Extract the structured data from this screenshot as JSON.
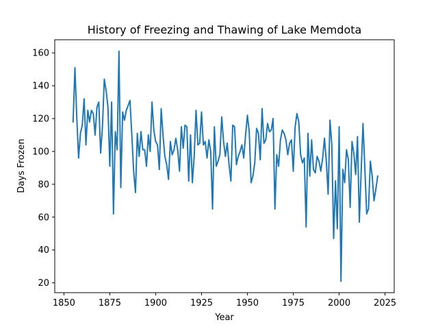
{
  "chart_data": {
    "type": "line",
    "title": "History of Freezing and Thawing of Lake Memdota",
    "xlabel": "Year",
    "ylabel": "Days Frozen",
    "xlim": [
      1845,
      2030
    ],
    "ylim": [
      14,
      168
    ],
    "xticks": [
      1850,
      1875,
      1900,
      1925,
      1950,
      1975,
      2000,
      2025
    ],
    "yticks": [
      20,
      40,
      60,
      80,
      100,
      120,
      140,
      160
    ],
    "grid": false,
    "color": "#1f77b4",
    "series": [
      {
        "x": [
          1855,
          1856,
          1857,
          1858,
          1859,
          1860,
          1861,
          1862,
          1863,
          1864,
          1865,
          1866,
          1867,
          1868,
          1869,
          1870,
          1871,
          1872,
          1873,
          1874,
          1875,
          1876,
          1877,
          1878,
          1879,
          1880,
          1881,
          1882,
          1883,
          1884,
          1885,
          1886,
          1887,
          1888,
          1889,
          1890,
          1891,
          1892,
          1893,
          1894,
          1895,
          1896,
          1897,
          1898,
          1899,
          1900,
          1901,
          1902,
          1903,
          1904,
          1905,
          1906,
          1907,
          1908,
          1909,
          1910,
          1911,
          1912,
          1913,
          1914,
          1915,
          1916,
          1917,
          1918,
          1919,
          1920,
          1921,
          1922,
          1923,
          1924,
          1925,
          1926,
          1927,
          1928,
          1929,
          1930,
          1931,
          1932,
          1933,
          1934,
          1935,
          1936,
          1937,
          1938,
          1939,
          1940,
          1941,
          1942,
          1943,
          1944,
          1945,
          1946,
          1947,
          1948,
          1949,
          1950,
          1951,
          1952,
          1953,
          1954,
          1955,
          1956,
          1957,
          1958,
          1959,
          1960,
          1961,
          1962,
          1963,
          1964,
          1965,
          1966,
          1967,
          1968,
          1969,
          1970,
          1971,
          1972,
          1973,
          1974,
          1975,
          1976,
          1977,
          1978,
          1979,
          1980,
          1981,
          1982,
          1983,
          1984,
          1985,
          1986,
          1987,
          1988,
          1989,
          1990,
          1991,
          1992,
          1993,
          1994,
          1995,
          1996,
          1997,
          1998,
          1999,
          2000,
          2001,
          2002,
          2003,
          2004,
          2005,
          2006,
          2007,
          2008,
          2009,
          2010,
          2011,
          2012,
          2013,
          2014,
          2015,
          2016,
          2017,
          2018,
          2019,
          2020,
          2021
        ],
        "values": [
          118,
          151,
          121,
          96,
          111,
          116,
          132,
          104,
          125,
          118,
          125,
          123,
          110,
          127,
          130,
          99,
          115,
          144,
          137,
          127,
          91,
          130,
          62,
          112,
          101,
          161,
          78,
          124,
          119,
          125,
          128,
          131,
          110,
          88,
          75,
          111,
          97,
          112,
          101,
          101,
          91,
          110,
          100,
          130,
          113,
          106,
          104,
          89,
          126,
          110,
          97,
          92,
          83,
          106,
          98,
          101,
          108,
          101,
          88,
          115,
          102,
          116,
          115,
          82,
          110,
          81,
          97,
          125,
          104,
          105,
          124,
          104,
          106,
          96,
          107,
          100,
          65,
          115,
          91,
          94,
          98,
          121,
          106,
          97,
          105,
          92,
          82,
          116,
          115,
          92,
          97,
          100,
          104,
          96,
          110,
          122,
          112,
          81,
          85,
          93,
          114,
          111,
          95,
          126,
          105,
          107,
          117,
          112,
          113,
          120,
          65,
          98,
          91,
          107,
          113,
          111,
          107,
          98,
          105,
          107,
          88,
          115,
          123,
          118,
          98,
          93,
          96,
          54,
          111,
          85,
          107,
          89,
          87,
          97,
          94,
          88,
          96,
          108,
          94,
          74,
          119,
          104,
          47,
          82,
          53,
          115,
          21,
          89,
          81,
          101,
          95,
          66,
          106,
          99,
          86,
          109,
          57,
          88,
          117,
          90,
          62,
          65,
          94,
          85,
          70,
          77,
          85
        ]
      }
    ]
  }
}
